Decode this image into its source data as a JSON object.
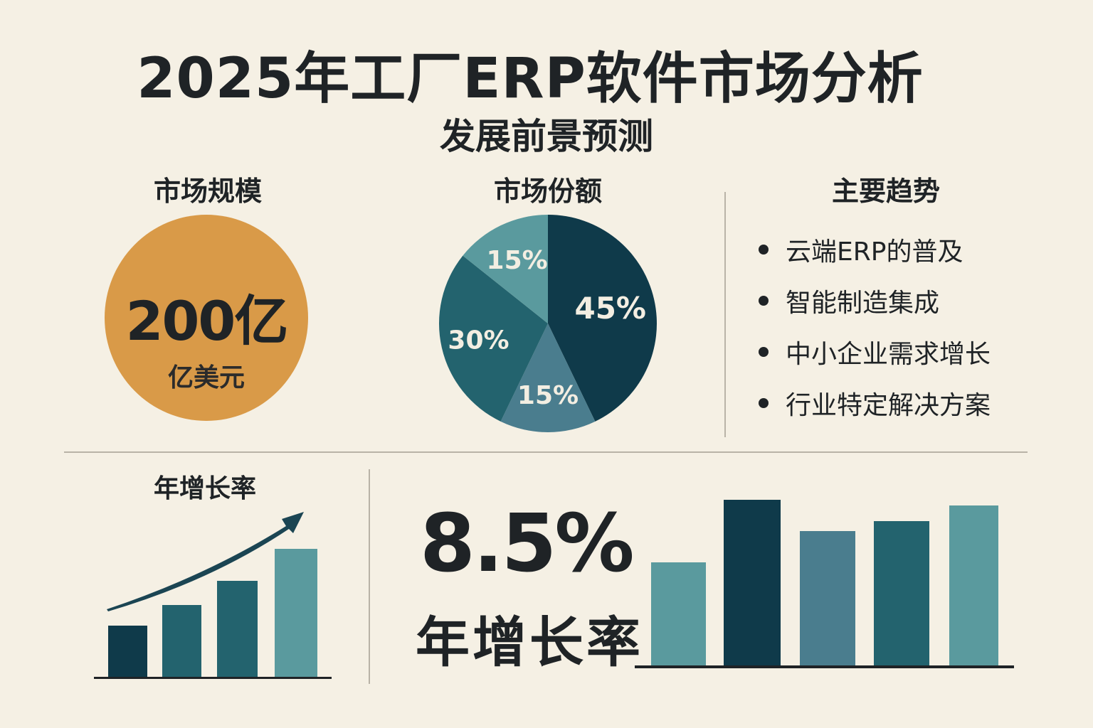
{
  "header": {
    "title": "2025年工厂ERP软件市场分析",
    "subtitle": "发展前景预测"
  },
  "market_size": {
    "heading": "市场规模",
    "value": "200亿",
    "unit": "亿美元",
    "color": "#d99a48"
  },
  "market_share": {
    "heading": "市场份额"
  },
  "trends": {
    "heading": "主要趋势",
    "items": [
      "云端ERP的普及",
      "智能制造集成",
      "中小企业需求增长",
      "行业特定解决方案"
    ]
  },
  "growth": {
    "heading": "年增长率",
    "rate": "8.5%",
    "rate_label": "年增长率"
  },
  "chart_data": [
    {
      "type": "pie",
      "title": "市场份额",
      "values": [
        45,
        15,
        30,
        15
      ],
      "labels": [
        "45%",
        "15%",
        "30%",
        "15%"
      ],
      "colors": [
        "#0f3a4a",
        "#4a7d8e",
        "#23636e",
        "#5a9a9e"
      ]
    },
    {
      "type": "bar",
      "title": "年增长率",
      "values": [
        73,
        102,
        136,
        181
      ],
      "colors": [
        "#0f3a4a",
        "#23636e",
        "#23636e",
        "#5a9a9e"
      ],
      "trend_arrow": true
    },
    {
      "type": "bar",
      "title": "",
      "values": [
        146,
        234,
        190,
        204,
        226
      ],
      "colors": [
        "#5a9a9e",
        "#0f3a4a",
        "#4a7d8e",
        "#23636e",
        "#5a9a9e"
      ]
    }
  ]
}
